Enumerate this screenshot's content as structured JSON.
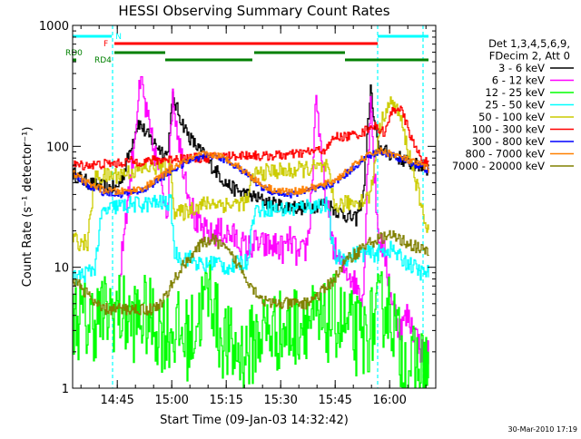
{
  "chart_data": {
    "type": "line",
    "title": "HESSI Observing Summary Count Rates",
    "xlabel": "Start Time (09-Jan-03 14:32:42)",
    "ylabel": "Count Rate (s⁻¹ detector⁻¹)",
    "x_unit": "minutes after 14:32:42",
    "xlim": [
      0,
      100
    ],
    "ylim": [
      1,
      1000
    ],
    "y_scale": "log",
    "x_ticks": [
      {
        "x": 12.3,
        "label": "14:45"
      },
      {
        "x": 27.3,
        "label": "15:00"
      },
      {
        "x": 42.3,
        "label": "15:15"
      },
      {
        "x": 57.3,
        "label": "15:30"
      },
      {
        "x": 72.3,
        "label": "15:45"
      },
      {
        "x": 87.3,
        "label": "16:00"
      }
    ],
    "y_ticks": [
      {
        "y": 1,
        "label": "1"
      },
      {
        "y": 10,
        "label": "10"
      },
      {
        "y": 100,
        "label": "100"
      },
      {
        "y": 1000,
        "label": "1000"
      }
    ],
    "legend": {
      "placement": "right",
      "header": [
        "Det 1,3,4,5,6,9,",
        "FDecim 2, Att 0"
      ]
    },
    "series": [
      {
        "name": "3 - 6 keV",
        "color": "#000000",
        "x": [
          0,
          3,
          6,
          9,
          12,
          12.5,
          14,
          16,
          18,
          20,
          22,
          24,
          26,
          27.5,
          28,
          30,
          32,
          34,
          36,
          38,
          40,
          42,
          44,
          46,
          48,
          50,
          52,
          54,
          56,
          58,
          60,
          62,
          64,
          66,
          68,
          70,
          72,
          74,
          76,
          78,
          80,
          81,
          82,
          83,
          84,
          86,
          88,
          90,
          92,
          94,
          96,
          98
        ],
        "y": [
          60,
          52,
          48,
          46,
          45,
          48,
          60,
          100,
          160,
          130,
          110,
          95,
          85,
          250,
          230,
          160,
          120,
          100,
          85,
          70,
          60,
          50,
          45,
          42,
          40,
          38,
          36,
          34,
          33,
          32,
          32,
          31,
          31,
          32,
          33,
          34,
          30,
          28,
          26,
          25,
          40,
          120,
          300,
          150,
          100,
          90,
          85,
          80,
          75,
          70,
          68,
          65
        ]
      },
      {
        "name": "6 - 12 keV",
        "color": "#ff00ff",
        "x": [
          12.5,
          14,
          16,
          18,
          19,
          20,
          22,
          24,
          25,
          26,
          27.5,
          28,
          30,
          32,
          34,
          36,
          38,
          40,
          42,
          44,
          46,
          48,
          50,
          52,
          54,
          56,
          58,
          60,
          62,
          64,
          65,
          66,
          67,
          68,
          70,
          72,
          74,
          76,
          78,
          80,
          81,
          82,
          83,
          84,
          86,
          88,
          90,
          92,
          94,
          96,
          98
        ],
        "y": [
          5,
          20,
          60,
          250,
          330,
          200,
          100,
          60,
          40,
          30,
          300,
          200,
          80,
          40,
          22,
          20,
          18,
          20,
          19,
          18,
          16,
          14,
          16,
          15,
          15,
          15,
          14,
          17,
          12,
          14,
          20,
          60,
          300,
          100,
          30,
          14,
          10,
          9,
          7,
          6,
          50,
          280,
          60,
          20,
          12,
          5,
          3,
          4,
          3,
          2,
          2
        ]
      },
      {
        "name": "12 - 25 keV",
        "color": "#00ff00",
        "x": [
          0,
          4,
          8,
          12,
          16,
          20,
          24,
          28,
          32,
          36,
          38,
          40,
          44,
          48,
          52,
          56,
          60,
          64,
          68,
          72,
          76,
          80,
          84,
          86,
          88,
          90,
          92,
          94,
          96,
          98
        ],
        "y": [
          4,
          3.5,
          4,
          4.5,
          3.5,
          4,
          3,
          3,
          2.5,
          5,
          7,
          3,
          2,
          2,
          3,
          3,
          3,
          4,
          3,
          4,
          3,
          2.5,
          4,
          5,
          4,
          2,
          1.5,
          1.5,
          1.5,
          1.5
        ]
      },
      {
        "name": "25 - 50 keV",
        "color": "#00ffff",
        "x": [
          0,
          2,
          4,
          6,
          8,
          10,
          12,
          14,
          16,
          18,
          20,
          22,
          24,
          26,
          27,
          28,
          30,
          32,
          34,
          36,
          38,
          40,
          42,
          44,
          46,
          48,
          50,
          52,
          54,
          56,
          58,
          60,
          62,
          64,
          66,
          68,
          70,
          72,
          74,
          76,
          78,
          80,
          82,
          84,
          86,
          88,
          90,
          92,
          94,
          96,
          98
        ],
        "y": [
          8,
          8.5,
          9,
          10,
          28,
          30,
          32,
          32,
          33,
          33,
          33,
          34,
          34,
          34,
          34,
          13,
          12,
          12,
          11,
          10,
          11,
          11,
          10,
          10,
          11,
          11,
          30,
          30,
          31,
          30,
          30,
          30,
          31,
          32,
          32,
          33,
          33,
          12,
          12,
          12,
          13,
          13,
          13,
          13,
          14,
          14,
          12,
          11,
          10,
          9,
          9
        ]
      },
      {
        "name": "50 - 100 keV",
        "color": "#cccc00",
        "x": [
          0,
          2,
          4,
          6,
          8,
          10,
          12,
          14,
          16,
          18,
          20,
          22,
          24,
          26,
          27,
          28,
          30,
          32,
          34,
          36,
          38,
          40,
          42,
          44,
          46,
          48,
          50,
          52,
          54,
          56,
          58,
          60,
          62,
          64,
          66,
          68,
          70,
          72,
          74,
          76,
          78,
          80,
          82,
          84,
          86,
          88,
          90,
          92,
          94,
          96,
          98
        ],
        "y": [
          17,
          16,
          16,
          55,
          56,
          57,
          58,
          60,
          62,
          64,
          66,
          68,
          68,
          68,
          68,
          28,
          28,
          30,
          32,
          33,
          34,
          34,
          33,
          33,
          34,
          35,
          60,
          60,
          62,
          63,
          62,
          62,
          64,
          65,
          66,
          66,
          67,
          32,
          33,
          34,
          35,
          36,
          40,
          120,
          200,
          230,
          180,
          100,
          60,
          30,
          20
        ]
      },
      {
        "name": "100 - 300 keV",
        "color": "#ff0000",
        "x": [
          0,
          5,
          10,
          12.5,
          15,
          20,
          25,
          27,
          28,
          30,
          35,
          40,
          45,
          50,
          52,
          55,
          60,
          65,
          70,
          72,
          75,
          80,
          82,
          84,
          86,
          88,
          90,
          92,
          94,
          96,
          98
        ],
        "y": [
          70,
          70,
          72,
          72,
          75,
          75,
          78,
          78,
          80,
          80,
          80,
          82,
          84,
          85,
          82,
          84,
          85,
          90,
          95,
          120,
          120,
          130,
          150,
          140,
          130,
          200,
          210,
          150,
          100,
          80,
          70
        ]
      },
      {
        "name": "300 - 800 keV",
        "color": "#0000ff",
        "x": [
          0,
          4,
          8,
          12,
          16,
          20,
          24,
          28,
          32,
          36,
          40,
          44,
          48,
          52,
          56,
          60,
          64,
          68,
          72,
          76,
          80,
          84,
          88,
          92,
          96,
          98
        ],
        "y": [
          58,
          48,
          42,
          40,
          41,
          44,
          54,
          65,
          76,
          84,
          82,
          72,
          58,
          46,
          41,
          40,
          42,
          45,
          50,
          62,
          78,
          90,
          85,
          75,
          68,
          62
        ]
      },
      {
        "name": "800 - 7000 keV",
        "color": "#ff8000",
        "x": [
          0,
          4,
          8,
          12,
          16,
          20,
          24,
          28,
          32,
          36,
          40,
          44,
          48,
          52,
          56,
          60,
          64,
          68,
          72,
          76,
          80,
          84,
          88,
          92,
          96,
          98
        ],
        "y": [
          60,
          50,
          44,
          42,
          43,
          46,
          56,
          68,
          78,
          86,
          84,
          74,
          60,
          48,
          43,
          42,
          44,
          47,
          52,
          64,
          80,
          92,
          87,
          77,
          70,
          64
        ]
      },
      {
        "name": "7000 - 20000 keV",
        "color": "#808000",
        "x": [
          0,
          2,
          4,
          6,
          8,
          10,
          12,
          14,
          16,
          18,
          20,
          22,
          24,
          26,
          28,
          30,
          32,
          34,
          36,
          38,
          40,
          42,
          44,
          46,
          48,
          50,
          52,
          54,
          56,
          58,
          60,
          62,
          64,
          66,
          68,
          70,
          72,
          74,
          76,
          78,
          80,
          82,
          84,
          86,
          88,
          90,
          92,
          94,
          96,
          98
        ],
        "y": [
          8,
          7,
          6,
          5,
          4.5,
          4.5,
          4.5,
          4.5,
          4.5,
          4.5,
          4.5,
          4.5,
          5,
          6,
          8,
          10,
          12,
          14,
          16,
          17,
          16,
          14,
          12,
          10,
          8,
          6.5,
          5.5,
          5,
          5,
          5,
          5,
          5,
          5,
          5.5,
          6,
          7,
          8,
          10,
          12,
          13,
          15,
          16,
          17,
          18,
          18,
          17,
          16,
          15,
          14,
          13
        ]
      }
    ],
    "flag_bars": [
      {
        "label": "N",
        "color": "#00ffff",
        "ranges": [
          [
            0,
            10.8
          ],
          [
            84,
            98
          ]
        ]
      },
      {
        "label": "F",
        "color": "#ff0000",
        "ranges": [
          [
            11.5,
            84
          ]
        ]
      },
      {
        "label": "RD0",
        "color": "#008000",
        "ranges": [
          [
            11.5,
            25.5
          ],
          [
            50,
            75
          ]
        ]
      },
      {
        "label": "RD4",
        "color": "#008000",
        "ranges": [
          [
            0,
            1
          ],
          [
            25.5,
            49.5
          ],
          [
            75,
            98
          ]
        ]
      }
    ],
    "vlines": [
      {
        "x": 11,
        "color": "#00ffff"
      },
      {
        "x": 84,
        "color": "#00ffff"
      },
      {
        "x": 96.5,
        "color": "#00ffff"
      }
    ]
  },
  "timestamp": "30-Mar-2010 17:19"
}
